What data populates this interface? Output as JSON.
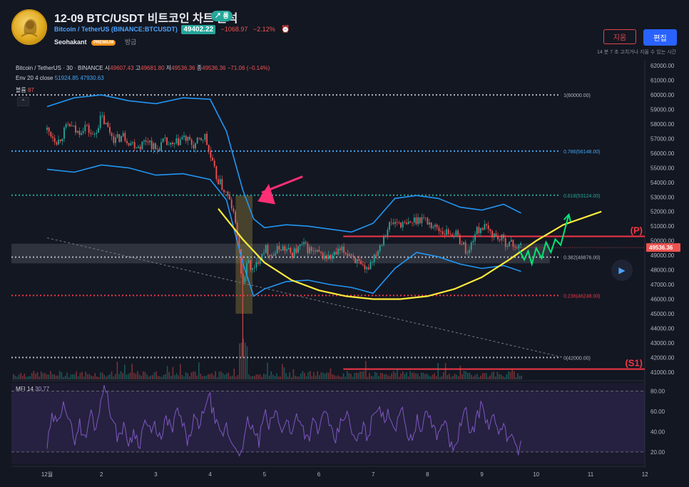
{
  "header": {
    "title": "12-09 BTC/USDT 비트코인 차트 분석",
    "trend_badge": "↗ 롱",
    "symbol_name": "Bitcoin / TetherUS",
    "symbol_code": "(BINANCE:BTCUSDT)",
    "last_price": "49402.22",
    "change": "−1068.97",
    "change_pct": "−2.12%",
    "author": "Seohakant",
    "premium_label": "PREMIUM",
    "time": "방금",
    "delete_label": "지움",
    "edit_label": "편집",
    "edit_note": "14 분 7 초 고치거나 지울 수 있는 시간"
  },
  "legend": {
    "symbol": "Bitcoin / TetherUS · 30 · BINANCE",
    "open_label": "시",
    "open": "49607.43",
    "high_label": "고",
    "high": "49681.80",
    "low_label": "저",
    "low": "49536.36",
    "close_label": "종",
    "close": "49536.36",
    "chg": "−71.06 (−0.14%)",
    "env_label": "Env 20 4 close",
    "env_upper": "51924.85",
    "env_lower": "47930.63",
    "volume_label": "볼륨",
    "volume": "87",
    "mfi_label": "MFI 14",
    "mfi": "30.77"
  },
  "colors": {
    "background": "#131722",
    "up": "#26a69a",
    "down": "#ef5350",
    "envelope": "#2196f3",
    "mfi": "#7e57c2",
    "curve": "#ffeb3b",
    "arrow_green": "#00e676",
    "arrow_pink": "#ff2e75",
    "level_red": "#f23645"
  },
  "chart_data": {
    "type": "candlestick",
    "symbol": "BTCUSDT",
    "timeframe": "30",
    "x_ticks": [
      "12월",
      "2",
      "3",
      "4",
      "5",
      "6",
      "7",
      "8",
      "9",
      "10",
      "11",
      "12"
    ],
    "x_tick_days": [
      1,
      2,
      3,
      4,
      5,
      6,
      7,
      8,
      9,
      10,
      11,
      12
    ],
    "y_ticks": [
      41000,
      42000,
      43000,
      44000,
      45000,
      46000,
      47000,
      48000,
      49000,
      50000,
      51000,
      52000,
      53000,
      54000,
      55000,
      56000,
      57000,
      58000,
      59000,
      60000,
      61000,
      62000
    ],
    "ylim": [
      40500,
      62400
    ],
    "current_price": 49536.36,
    "current_price_label": "49536.36",
    "price_path": [
      [
        1.0,
        57600
      ],
      [
        1.2,
        56800
      ],
      [
        1.4,
        58000
      ],
      [
        1.55,
        57400
      ],
      [
        1.7,
        57900
      ],
      [
        1.85,
        57100
      ],
      [
        2.0,
        58500
      ],
      [
        2.1,
        57800
      ],
      [
        2.25,
        56900
      ],
      [
        2.4,
        57200
      ],
      [
        2.55,
        56700
      ],
      [
        2.7,
        56500
      ],
      [
        2.85,
        57000
      ],
      [
        3.0,
        56200
      ],
      [
        3.15,
        56800
      ],
      [
        3.3,
        56400
      ],
      [
        3.5,
        57100
      ],
      [
        3.7,
        56500
      ],
      [
        3.9,
        57200
      ],
      [
        4.0,
        55800
      ],
      [
        4.1,
        54500
      ],
      [
        4.2,
        53800
      ],
      [
        4.3,
        53200
      ],
      [
        4.4,
        52300
      ],
      [
        4.5,
        50500
      ],
      [
        4.55,
        48500
      ],
      [
        4.6,
        47000
      ],
      [
        4.7,
        48600
      ],
      [
        4.8,
        47800
      ],
      [
        4.9,
        48900
      ],
      [
        5.0,
        49500
      ],
      [
        5.15,
        49000
      ],
      [
        5.3,
        49600
      ],
      [
        5.5,
        49100
      ],
      [
        5.7,
        49700
      ],
      [
        5.9,
        49200
      ],
      [
        6.05,
        49000
      ],
      [
        6.2,
        48800
      ],
      [
        6.4,
        49300
      ],
      [
        6.6,
        49100
      ],
      [
        6.75,
        48300
      ],
      [
        6.85,
        47800
      ],
      [
        7.0,
        48900
      ],
      [
        7.1,
        49500
      ],
      [
        7.2,
        50400
      ],
      [
        7.3,
        51100
      ],
      [
        7.45,
        51300
      ],
      [
        7.6,
        51000
      ],
      [
        7.75,
        51400
      ],
      [
        7.9,
        51600
      ],
      [
        8.0,
        51300
      ],
      [
        8.15,
        50900
      ],
      [
        8.3,
        50600
      ],
      [
        8.5,
        50500
      ],
      [
        8.65,
        49800
      ],
      [
        8.75,
        49000
      ],
      [
        8.85,
        50400
      ],
      [
        9.0,
        51000
      ],
      [
        9.15,
        50600
      ],
      [
        9.3,
        50200
      ],
      [
        9.45,
        49900
      ],
      [
        9.6,
        49700
      ],
      [
        9.72,
        49536
      ]
    ],
    "envelope_upper": [
      [
        1.0,
        59200
      ],
      [
        1.5,
        59800
      ],
      [
        2.0,
        60000
      ],
      [
        2.5,
        59600
      ],
      [
        3.0,
        59400
      ],
      [
        3.5,
        59800
      ],
      [
        4.0,
        59700
      ],
      [
        4.3,
        57500
      ],
      [
        4.6,
        53500
      ],
      [
        4.8,
        51500
      ],
      [
        5.0,
        50900
      ],
      [
        5.4,
        51100
      ],
      [
        5.8,
        51000
      ],
      [
        6.2,
        50800
      ],
      [
        6.6,
        50600
      ],
      [
        7.0,
        51200
      ],
      [
        7.4,
        52900
      ],
      [
        7.8,
        53100
      ],
      [
        8.2,
        52900
      ],
      [
        8.6,
        52300
      ],
      [
        9.0,
        52100
      ],
      [
        9.4,
        52500
      ],
      [
        9.72,
        51900
      ]
    ],
    "envelope_lower": [
      [
        1.0,
        54900
      ],
      [
        1.5,
        54700
      ],
      [
        2.0,
        55200
      ],
      [
        2.5,
        55000
      ],
      [
        3.0,
        54500
      ],
      [
        3.5,
        54600
      ],
      [
        4.0,
        54200
      ],
      [
        4.3,
        52800
      ],
      [
        4.6,
        48500
      ],
      [
        4.8,
        46200
      ],
      [
        5.0,
        46700
      ],
      [
        5.4,
        47200
      ],
      [
        5.8,
        47300
      ],
      [
        6.2,
        47000
      ],
      [
        6.6,
        46800
      ],
      [
        7.0,
        46400
      ],
      [
        7.4,
        48100
      ],
      [
        7.8,
        49200
      ],
      [
        8.2,
        48900
      ],
      [
        8.6,
        48400
      ],
      [
        9.0,
        48100
      ],
      [
        9.4,
        48300
      ],
      [
        9.72,
        47900
      ]
    ],
    "fib_levels": [
      {
        "ratio": 1,
        "label": "1(60000.00)",
        "price": 60000,
        "color": "#b2b5be"
      },
      {
        "ratio": 0.786,
        "label": "0.786(56148.00)",
        "price": 56148,
        "color": "#42a5f5"
      },
      {
        "ratio": 0.618,
        "label": "0.618(53124.00)",
        "price": 53124,
        "color": "#26a69a"
      },
      {
        "ratio": 0.382,
        "label": "0.382(48876.00)",
        "price": 48876,
        "color": "#b2b5be"
      },
      {
        "ratio": 0.236,
        "label": "0.236(46248.00)",
        "price": 46248,
        "color": "#f23645"
      },
      {
        "ratio": 0,
        "label": "0(42000.00)",
        "price": 42000,
        "color": "#b2b5be"
      }
    ],
    "horizontal_lines": [
      {
        "label": "(P)",
        "price": 50300,
        "from_day": 6.45
      },
      {
        "label": "(S1)",
        "price": 41200,
        "from_day": 6.45
      }
    ],
    "highlight_zone": {
      "from_day": 1.0,
      "to_day": 10.25,
      "low": 48450,
      "high": 49800
    },
    "vertical_zone": {
      "from_day": 4.47,
      "to_day": 4.78,
      "low": 45000,
      "high": 53100
    },
    "trendline": [
      [
        1.0,
        50200
      ],
      [
        10.5,
        42000
      ]
    ],
    "rounding_curve": [
      [
        4.15,
        52200
      ],
      [
        4.6,
        50100
      ],
      [
        5.0,
        48500
      ],
      [
        5.5,
        47300
      ],
      [
        6.0,
        46600
      ],
      [
        6.5,
        46200
      ],
      [
        7.0,
        46000
      ],
      [
        7.5,
        46000
      ],
      [
        8.0,
        46200
      ],
      [
        8.5,
        46700
      ],
      [
        9.0,
        47500
      ],
      [
        9.5,
        48700
      ],
      [
        10.0,
        50000
      ],
      [
        10.5,
        51100
      ],
      [
        11.2,
        52000
      ]
    ],
    "projection_path": [
      [
        9.7,
        49300
      ],
      [
        9.78,
        48700
      ],
      [
        9.85,
        49300
      ],
      [
        9.92,
        48400
      ],
      [
        10.0,
        49500
      ],
      [
        10.1,
        48800
      ],
      [
        10.18,
        49900
      ],
      [
        10.27,
        49200
      ],
      [
        10.35,
        50100
      ],
      [
        10.45,
        49700
      ],
      [
        10.6,
        51800
      ]
    ],
    "mfi": {
      "name": "MFI 14",
      "y_ticks": [
        20,
        40,
        60,
        80
      ],
      "tick_labels": [
        "20.00",
        "40.00",
        "60.00",
        "80.00"
      ],
      "ylim": [
        8,
        88
      ],
      "bands": [
        20,
        80
      ],
      "values": [
        [
          1.0,
          25
        ],
        [
          1.1,
          55
        ],
        [
          1.2,
          45
        ],
        [
          1.3,
          75
        ],
        [
          1.4,
          50
        ],
        [
          1.5,
          32
        ],
        [
          1.6,
          48
        ],
        [
          1.7,
          30
        ],
        [
          1.8,
          60
        ],
        [
          1.9,
          42
        ],
        [
          2.0,
          78
        ],
        [
          2.1,
          82
        ],
        [
          2.2,
          50
        ],
        [
          2.3,
          35
        ],
        [
          2.4,
          45
        ],
        [
          2.5,
          30
        ],
        [
          2.6,
          40
        ],
        [
          2.7,
          28
        ],
        [
          2.8,
          52
        ],
        [
          2.9,
          38
        ],
        [
          3.0,
          46
        ],
        [
          3.1,
          30
        ],
        [
          3.2,
          55
        ],
        [
          3.3,
          40
        ],
        [
          3.4,
          62
        ],
        [
          3.5,
          45
        ],
        [
          3.6,
          28
        ],
        [
          3.7,
          55
        ],
        [
          3.8,
          40
        ],
        [
          3.9,
          68
        ],
        [
          4.0,
          72
        ],
        [
          4.1,
          48
        ],
        [
          4.2,
          35
        ],
        [
          4.3,
          45
        ],
        [
          4.4,
          28
        ],
        [
          4.5,
          25
        ],
        [
          4.6,
          18
        ],
        [
          4.65,
          38
        ],
        [
          4.7,
          52
        ],
        [
          4.8,
          40
        ],
        [
          4.9,
          30
        ],
        [
          5.0,
          58
        ],
        [
          5.1,
          45
        ],
        [
          5.2,
          62
        ],
        [
          5.3,
          40
        ],
        [
          5.4,
          55
        ],
        [
          5.5,
          35
        ],
        [
          5.6,
          60
        ],
        [
          5.7,
          45
        ],
        [
          5.8,
          32
        ],
        [
          5.9,
          50
        ],
        [
          6.0,
          38
        ],
        [
          6.1,
          65
        ],
        [
          6.2,
          42
        ],
        [
          6.3,
          30
        ],
        [
          6.4,
          48
        ],
        [
          6.5,
          60
        ],
        [
          6.6,
          40
        ],
        [
          6.7,
          28
        ],
        [
          6.8,
          45
        ],
        [
          6.9,
          35
        ],
        [
          7.0,
          55
        ],
        [
          7.1,
          70
        ],
        [
          7.2,
          48
        ],
        [
          7.3,
          60
        ],
        [
          7.4,
          42
        ],
        [
          7.5,
          66
        ],
        [
          7.6,
          45
        ],
        [
          7.7,
          30
        ],
        [
          7.8,
          52
        ],
        [
          7.9,
          40
        ],
        [
          8.0,
          62
        ],
        [
          8.1,
          45
        ],
        [
          8.2,
          35
        ],
        [
          8.3,
          55
        ],
        [
          8.4,
          30
        ],
        [
          8.5,
          22
        ],
        [
          8.6,
          45
        ],
        [
          8.7,
          60
        ],
        [
          8.8,
          38
        ],
        [
          8.9,
          52
        ],
        [
          9.0,
          68
        ],
        [
          9.1,
          45
        ],
        [
          9.2,
          55
        ],
        [
          9.3,
          35
        ],
        [
          9.4,
          50
        ],
        [
          9.5,
          28
        ],
        [
          9.6,
          40
        ],
        [
          9.65,
          18
        ],
        [
          9.72,
          31
        ]
      ]
    }
  }
}
